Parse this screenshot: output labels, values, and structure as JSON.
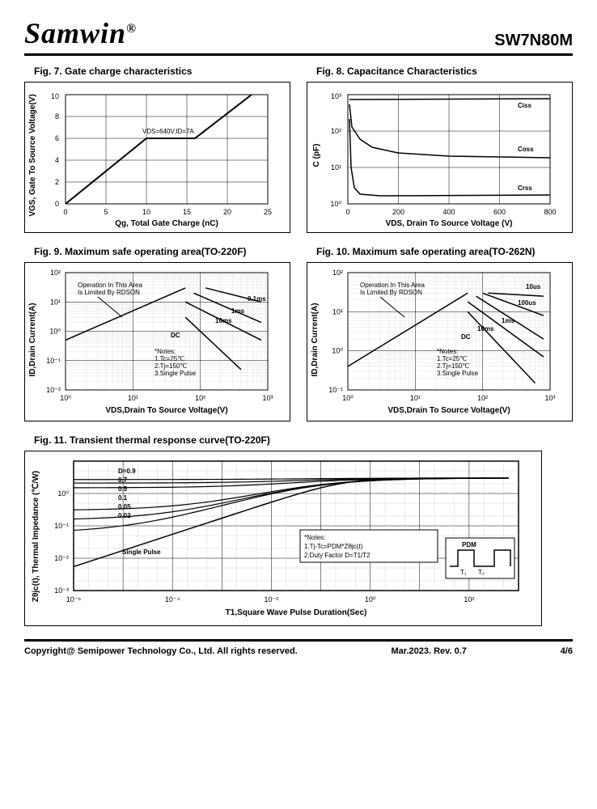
{
  "header": {
    "brand": "Samwin",
    "reg": "®",
    "part": "SW7N80M"
  },
  "fig7": {
    "title": "Fig. 7. Gate charge characteristics",
    "xlabel": "Qg, Total Gate Charge (nC)",
    "ylabel": "VGS, Gate To  Source Voltage(V)",
    "xlim": [
      0,
      25
    ],
    "xticks": [
      0,
      5,
      10,
      15,
      20,
      25
    ],
    "ylim": [
      0,
      10
    ],
    "yticks": [
      0,
      2,
      4,
      6,
      8,
      10
    ],
    "anno": "VDS=640V,ID=7A",
    "points": [
      [
        0,
        0
      ],
      [
        10,
        6
      ],
      [
        16,
        6
      ],
      [
        23,
        10
      ]
    ]
  },
  "fig8": {
    "title": "Fig. 8. Capacitance Characteristics",
    "xlabel": "VDS, Drain To Source Voltage (V)",
    "ylabel": "C  (pF)",
    "xlim": [
      0,
      800
    ],
    "xticks": [
      0,
      200,
      400,
      600,
      800
    ],
    "ylim": [
      1,
      2000
    ],
    "ylog": true,
    "yticks": [
      1,
      10,
      100,
      1000
    ],
    "yticklabels": [
      "10⁰",
      "10¹",
      "10²",
      "10³"
    ],
    "curves": {
      "ciss": {
        "label": "Ciss",
        "y": 1500,
        "pts": [
          [
            5,
            1400
          ],
          [
            50,
            1500
          ],
          [
            800,
            1500
          ]
        ]
      },
      "coss": {
        "label": "Coss",
        "pts": [
          [
            5,
            800
          ],
          [
            20,
            200
          ],
          [
            50,
            100
          ],
          [
            100,
            70
          ],
          [
            200,
            50
          ],
          [
            400,
            40
          ],
          [
            800,
            35
          ]
        ]
      },
      "crss": {
        "label": "Crss",
        "pts": [
          [
            5,
            300
          ],
          [
            10,
            10
          ],
          [
            20,
            3
          ],
          [
            50,
            1.8
          ],
          [
            800,
            1.8
          ]
        ]
      }
    }
  },
  "fig9": {
    "title": "Fig. 9. Maximum safe operating area(TO-220F)",
    "xlabel": "VDS,Drain To Source Voltage(V)",
    "ylabel": "ID,Drain Current(A)",
    "xlim": [
      1,
      1000
    ],
    "xticks": [
      1,
      10,
      100,
      1000
    ],
    "xlog": true,
    "xticklabels": [
      "10⁰",
      "10¹",
      "10²",
      "10³"
    ],
    "ylim": [
      0.01,
      100
    ],
    "yticks": [
      0.01,
      0.1,
      1,
      10,
      100
    ],
    "ylog": true,
    "yticklabels": [
      "10⁻²",
      "10⁻¹",
      "10⁰",
      "10¹",
      "10²"
    ],
    "anno1": "Operation In This Area\nIs Limited By RDSON",
    "notes": "*Notes:\n1.Tc=25℃\n2.Tj=150℃\n3.Single Pulse",
    "labels": [
      "0.1ms",
      "1ms",
      "10ms",
      "DC"
    ]
  },
  "fig10": {
    "title": "Fig. 10. Maximum safe operating area(TO-262N)",
    "xlabel": "VDS,Drain To Source Voltage(V)",
    "ylabel": "ID,Drain Current(A)",
    "xlim": [
      1,
      1000
    ],
    "xticks": [
      1,
      10,
      100,
      1000
    ],
    "xlog": true,
    "xticklabels": [
      "10⁰",
      "10¹",
      "10²",
      "10³"
    ],
    "ylim": [
      0.1,
      100
    ],
    "yticks": [
      0.1,
      1,
      10,
      100
    ],
    "ylog": true,
    "yticklabels": [
      "10⁻¹",
      "10⁰",
      "10¹",
      "10²"
    ],
    "anno1": "Operation In This Area\nIs Limited By RDSON",
    "notes": "*Notes:\n1.Tc=25℃\n2.Tj=150℃\n3.Single Pulse",
    "labels": [
      "10us",
      "100us",
      "1ms",
      "10ms",
      "DC"
    ]
  },
  "fig11": {
    "title": "Fig. 11. Transient thermal response curve(TO-220F)",
    "xlabel": "T1,Square Wave Pulse Duration(Sec)",
    "ylabel": "Zθjc(t), Thermal Impedance (℃/W)",
    "xlim": [
      1e-06,
      1000
    ],
    "xlog": true,
    "xticks": [
      1e-06,
      0.0001,
      0.01,
      1,
      100
    ],
    "xticklabels": [
      "10⁻⁶",
      "10⁻⁴",
      "10⁻²",
      "10⁰",
      "10²"
    ],
    "ylim": [
      0.001,
      10
    ],
    "ylog": true,
    "yticks": [
      0.001,
      0.01,
      0.1,
      1,
      10
    ],
    "yticklabels": [
      "10⁻³",
      "10⁻²",
      "10⁻¹",
      "10⁰",
      ""
    ],
    "dlabels": [
      "D=0.9",
      "0.7",
      "0.5",
      "0.1",
      "0.05",
      "0.02"
    ],
    "single": "Single Pulse",
    "notes": "*Notes:\n1.Tj-Tc=PDM*Zθjc(t)\n2.Duty Factor D=T1/T2",
    "pdm": "PDM"
  },
  "footer": {
    "copyright": "Copyright@ Semipower Technology Co., Ltd. All rights reserved.",
    "rev": "Mar.2023. Rev. 0.7",
    "page": "4/6"
  }
}
